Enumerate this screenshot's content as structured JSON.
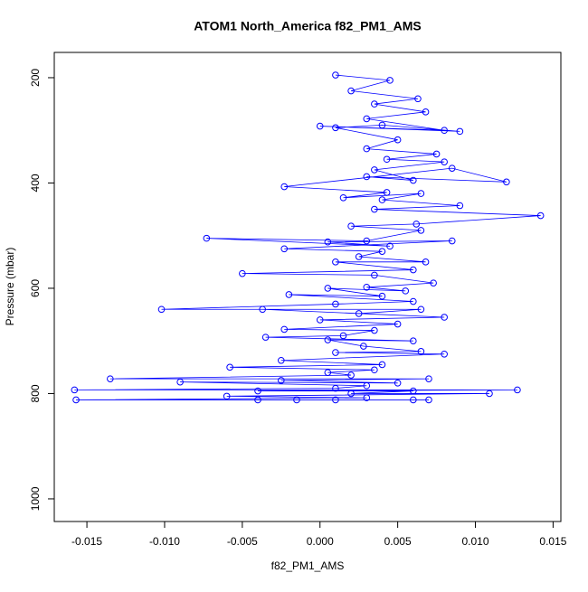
{
  "chart_data": {
    "type": "line",
    "title": "ATOM1 North_America f82_PM1_AMS",
    "xlabel": "f82_PM1_AMS",
    "ylabel": "Pressure (mbar)",
    "color": "#0000ff",
    "xlim": [
      -0.0171,
      0.0155
    ],
    "ylim": [
      1043,
      152
    ],
    "xticks": [
      {
        "value": -0.015,
        "label": "-0.015"
      },
      {
        "value": -0.01,
        "label": "-0.010"
      },
      {
        "value": -0.005,
        "label": "-0.005"
      },
      {
        "value": 0,
        "label": "0.000"
      },
      {
        "value": 0.005,
        "label": "0.005"
      },
      {
        "value": 0.01,
        "label": "0.010"
      },
      {
        "value": 0.015,
        "label": "0.015"
      }
    ],
    "yticks": [
      200,
      400,
      600,
      800,
      1000
    ],
    "x": [
      0.001,
      0.0045,
      0.002,
      0.0063,
      0.0035,
      0.0068,
      0.003,
      0.008,
      0.0,
      0.009,
      0.004,
      0.001,
      0.005,
      0.003,
      0.0075,
      0.0043,
      0.008,
      0.0035,
      0.006,
      0.003,
      0.012,
      0.0085,
      -0.0023,
      0.0043,
      0.0015,
      0.0065,
      0.004,
      0.009,
      0.0035,
      0.0142,
      0.0062,
      0.002,
      0.0065,
      0.003,
      -0.0073,
      0.0045,
      0.0005,
      0.0085,
      -0.0023,
      0.004,
      0.0025,
      0.0068,
      0.001,
      0.006,
      -0.005,
      0.0035,
      0.0073,
      0.003,
      0.0055,
      0.0005,
      0.004,
      -0.002,
      0.006,
      0.001,
      -0.0102,
      0.0065,
      0.0025,
      -0.0037,
      0.008,
      0.0,
      0.005,
      -0.0023,
      0.0035,
      0.0015,
      -0.0035,
      0.006,
      0.0005,
      0.0028,
      0.0065,
      0.001,
      0.008,
      -0.0025,
      0.004,
      -0.0058,
      0.0035,
      0.0005,
      0.002,
      -0.0135,
      0.007,
      -0.0025,
      0.005,
      -0.009,
      0.003,
      0.001,
      -0.0158,
      0.0127,
      -0.004,
      0.006,
      0.002,
      0.0109,
      -0.006,
      0.003,
      -0.0157,
      0.001,
      -0.004,
      0.007,
      -0.0015,
      0.006
    ],
    "values": [
      195,
      205,
      225,
      240,
      250,
      265,
      278,
      300,
      292,
      302,
      290,
      295,
      318,
      335,
      345,
      355,
      360,
      375,
      395,
      388,
      398,
      372,
      407,
      418,
      428,
      420,
      432,
      443,
      450,
      462,
      478,
      482,
      490,
      510,
      505,
      520,
      512,
      510,
      525,
      530,
      540,
      550,
      550,
      565,
      572,
      575,
      590,
      598,
      605,
      600,
      615,
      612,
      625,
      630,
      640,
      640,
      648,
      640,
      655,
      660,
      668,
      678,
      680,
      690,
      693,
      700,
      698,
      710,
      720,
      722,
      725,
      737,
      745,
      750,
      755,
      760,
      765,
      772,
      772,
      775,
      780,
      778,
      785,
      790,
      793,
      793,
      795,
      795,
      800,
      800,
      805,
      808,
      812,
      812,
      812,
      812,
      812,
      812
    ]
  }
}
